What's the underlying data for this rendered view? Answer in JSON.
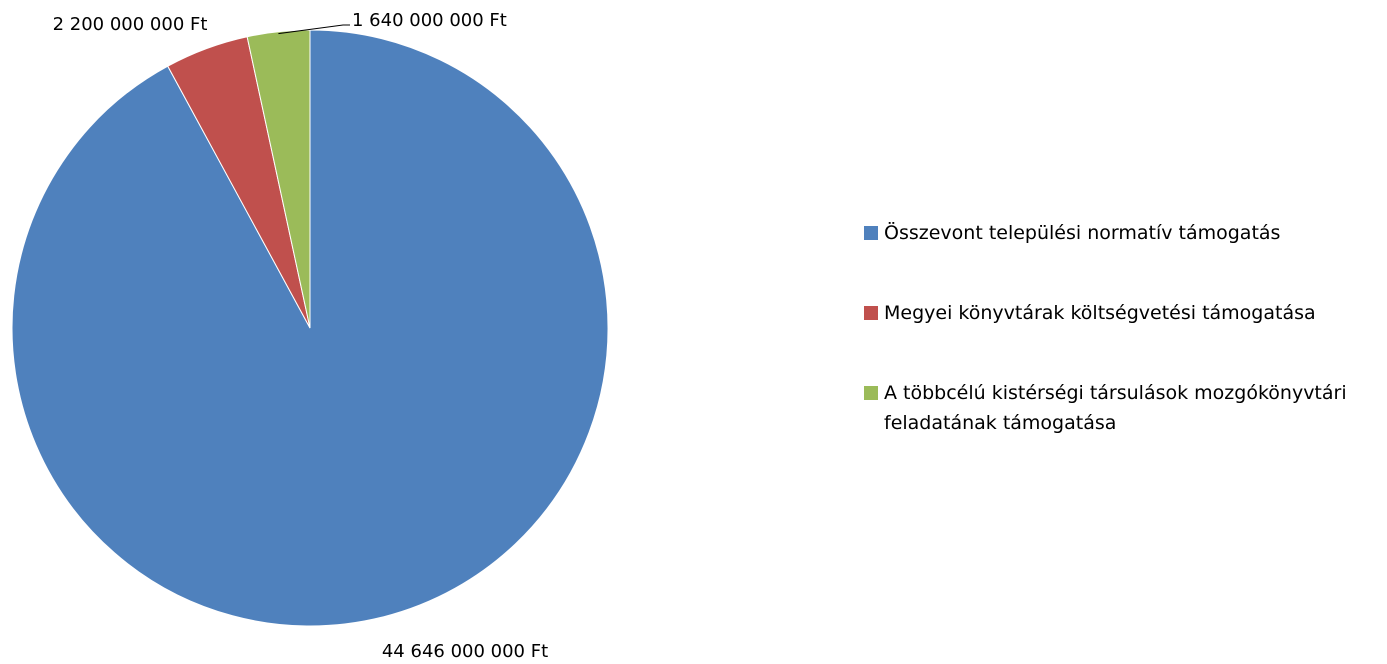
{
  "chart_data": {
    "type": "pie",
    "categories": [
      "Összevont települési normatív támogatás",
      "Megyei könyvtárak költségvetési támogatása",
      "A többcélú kistérségi társulások mozgókönyvtári feladatának támogatása"
    ],
    "values": [
      44646000000,
      2200000000,
      1640000000
    ],
    "value_labels": [
      "44 646 000 000 Ft",
      "2 200 000 000 Ft",
      "1 640 000 000 Ft"
    ],
    "colors": [
      "#4f81bd",
      "#c0504d",
      "#9bbb59"
    ],
    "legend": "right"
  }
}
